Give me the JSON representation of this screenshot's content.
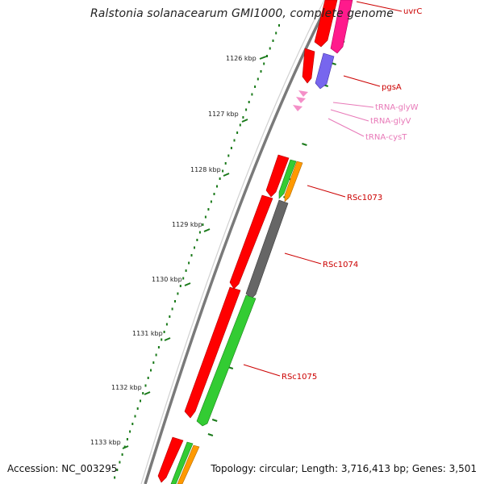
{
  "title": "Ralstonia solanacearum GMI1000, complete genome",
  "footer": {
    "accession": "Accession: NC_003295",
    "topology": "Topology: circular; Length: 3,716,413 bp; Genes: 3,501"
  },
  "colors": {
    "backbone": "#888888",
    "cds_red": "#ff0000",
    "cds_magenta": "#ff1a8c",
    "cds_purple": "#7766ee",
    "cds_green": "#33cc33",
    "cds_orange": "#ff9900",
    "cds_gray": "#666666",
    "trna": "#f48fc8",
    "tick_green": "#1a7a1a",
    "label_red": "#cc0000",
    "label_pink": "#e879b8"
  },
  "kbp_ticks": [
    "1126 kbp",
    "1127 kbp",
    "1128 kbp",
    "1129 kbp",
    "1130 kbp",
    "1131 kbp",
    "1132 kbp",
    "1133 kbp"
  ],
  "gene_labels": [
    {
      "name": "uvrC",
      "color_key": "label_red"
    },
    {
      "name": "pgsA",
      "color_key": "label_red"
    },
    {
      "name": "tRNA-glyW",
      "color_key": "label_pink"
    },
    {
      "name": "tRNA-glyV",
      "color_key": "label_pink"
    },
    {
      "name": "tRNA-cysT",
      "color_key": "label_pink"
    },
    {
      "name": "RSc1073",
      "color_key": "label_red"
    },
    {
      "name": "RSc1074",
      "color_key": "label_red"
    },
    {
      "name": "RSc1075",
      "color_key": "label_red"
    }
  ]
}
